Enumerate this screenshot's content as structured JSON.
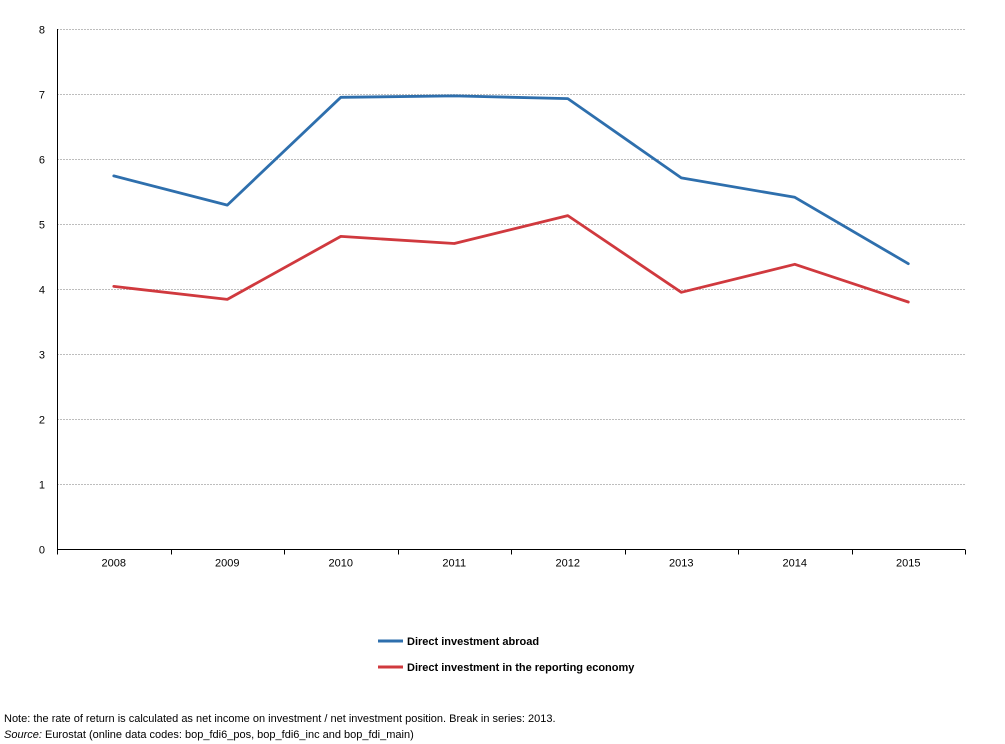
{
  "chart_data": {
    "type": "line",
    "categories": [
      "2008",
      "2009",
      "2010",
      "2011",
      "2012",
      "2013",
      "2014",
      "2015"
    ],
    "series": [
      {
        "name": "Direct investment abroad",
        "color": "#2e6fad",
        "values": [
          5.74,
          5.29,
          6.95,
          6.97,
          6.93,
          5.71,
          5.41,
          4.39
        ]
      },
      {
        "name": "Direct investment in the reporting economy",
        "color": "#d0393e",
        "values": [
          4.04,
          3.84,
          4.81,
          4.7,
          5.13,
          3.95,
          4.38,
          3.8
        ]
      }
    ],
    "ylim": [
      0,
      8
    ],
    "yticks": [
      "0",
      "1",
      "2",
      "3",
      "4",
      "5",
      "6",
      "7",
      "8"
    ],
    "grid": true,
    "gridline_color": "#bdbdbd",
    "legend_position": "bottom-center"
  },
  "notes": {
    "note": "Note: the rate of return is calculated as net income on investment / net investment position. Break in series: 2013.",
    "source_label": "Source:",
    "source_text": " Eurostat (online data codes: bop_fdi6_pos, bop_fdi6_inc and bop_fdi_main)"
  }
}
